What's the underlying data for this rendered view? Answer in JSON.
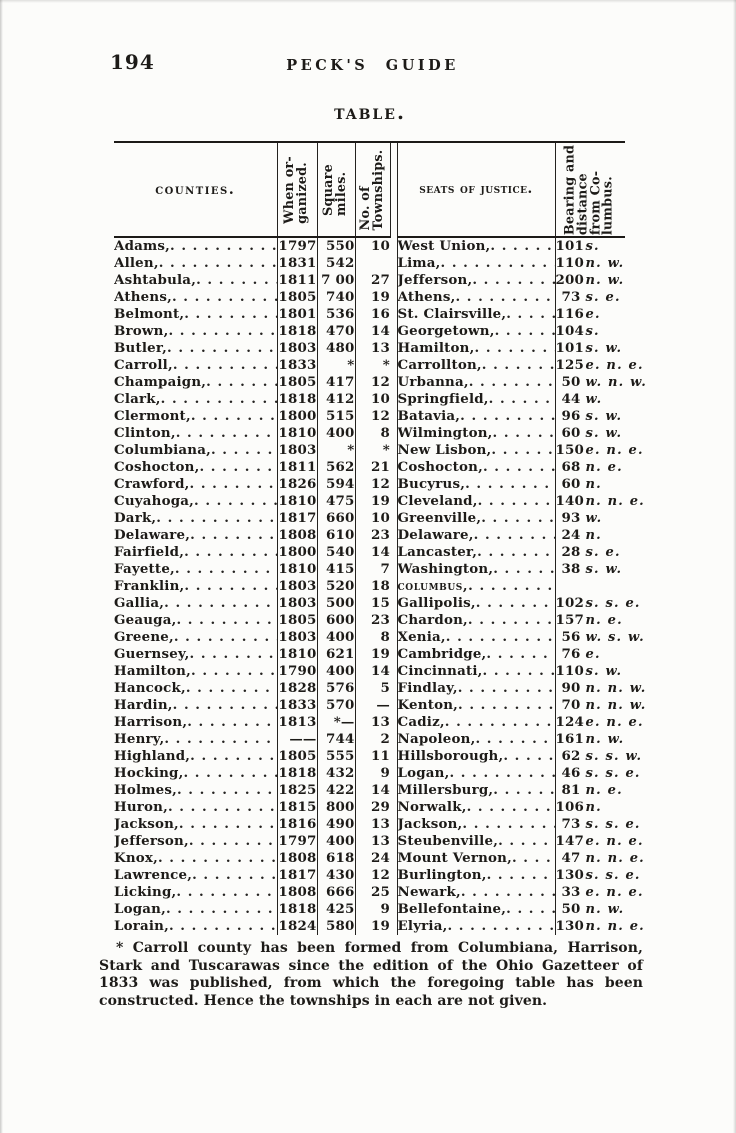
{
  "doc": {
    "page_number": "194",
    "running_head": "PECK'S GUIDE",
    "table_title": "Table."
  },
  "table": {
    "headers": {
      "counties": "Counties.",
      "organized": [
        "When or-",
        "ganized."
      ],
      "sq_miles": [
        "Square",
        "miles."
      ],
      "townships": [
        "No. of",
        "Townships."
      ],
      "seats": "Seats of Justice.",
      "bearing": [
        "Bearing and",
        "distance",
        "from Co-",
        "lumbus."
      ]
    },
    "rows": [
      {
        "county": "Adams,",
        "organized": "1797",
        "sq_miles": "550",
        "townships": "10",
        "seat": "West Union,",
        "dist": "101",
        "dir": "s."
      },
      {
        "county": "Allen,",
        "organized": "1831",
        "sq_miles": "542",
        "townships": "",
        "seat": "Lima,",
        "dist": "110",
        "dir": "n. w."
      },
      {
        "county": "Ashtabula,",
        "organized": "1811",
        "sq_miles": "7 00",
        "townships": "27",
        "seat": "Jefferson,",
        "dist": "200",
        "dir": "n. w."
      },
      {
        "county": "Athens,",
        "organized": "1805",
        "sq_miles": "740",
        "townships": "19",
        "seat": "Athens,",
        "dist": "73",
        "dir": "s. e."
      },
      {
        "county": "Belmont,",
        "organized": "1801",
        "sq_miles": "536",
        "townships": "16",
        "seat": "St. Clairsville,",
        "dist": "116",
        "dir": "e."
      },
      {
        "county": "Brown,",
        "organized": "1818",
        "sq_miles": "470",
        "townships": "14",
        "seat": "Georgetown,",
        "dist": "104",
        "dir": "s."
      },
      {
        "county": "Butler,",
        "organized": "1803",
        "sq_miles": "480",
        "townships": "13",
        "seat": "Hamilton,",
        "dist": "101",
        "dir": "s. w."
      },
      {
        "county": "Carroll,",
        "organized": "1833",
        "sq_miles": "*",
        "townships": "*",
        "seat": "Carrollton,",
        "dist": "125",
        "dir": "e. n. e."
      },
      {
        "county": "Champaign,",
        "organized": "1805",
        "sq_miles": "417",
        "townships": "12",
        "seat": "Urbanna,",
        "dist": "50",
        "dir": "w. n. w."
      },
      {
        "county": "Clark,",
        "organized": "1818",
        "sq_miles": "412",
        "townships": "10",
        "seat": "Springfield,",
        "dist": "44",
        "dir": "w."
      },
      {
        "county": "Clermont,",
        "organized": "1800",
        "sq_miles": "515",
        "townships": "12",
        "seat": "Batavia,",
        "dist": "96",
        "dir": "s. w."
      },
      {
        "county": "Clinton,",
        "organized": "1810",
        "sq_miles": "400",
        "townships": "8",
        "seat": "Wilmington,",
        "dist": "60",
        "dir": "s. w."
      },
      {
        "county": "Columbiana,",
        "organized": "1803",
        "sq_miles": "*",
        "townships": "*",
        "seat": "New Lisbon,",
        "dist": "150",
        "dir": "e. n. e."
      },
      {
        "county": "Coshocton,",
        "organized": "1811",
        "sq_miles": "562",
        "townships": "21",
        "seat": "Coshocton,",
        "dist": "68",
        "dir": "n. e."
      },
      {
        "county": "Crawford,",
        "organized": "1826",
        "sq_miles": "594",
        "townships": "12",
        "seat": "Bucyrus,",
        "dist": "60",
        "dir": "n."
      },
      {
        "county": "Cuyahoga,",
        "organized": "1810",
        "sq_miles": "475",
        "townships": "19",
        "seat": "Cleveland,",
        "dist": "140",
        "dir": "n. n. e."
      },
      {
        "county": "Dark,",
        "organized": "1817",
        "sq_miles": "660",
        "townships": "10",
        "seat": "Greenville,",
        "dist": "93",
        "dir": "w."
      },
      {
        "county": "Delaware,",
        "organized": "1808",
        "sq_miles": "610",
        "townships": "23",
        "seat": "Delaware,",
        "dist": "24",
        "dir": "n."
      },
      {
        "county": "Fairfield,",
        "organized": "1800",
        "sq_miles": "540",
        "townships": "14",
        "seat": "Lancaster,",
        "dist": "28",
        "dir": "s. e."
      },
      {
        "county": "Fayette,",
        "organized": "1810",
        "sq_miles": "415",
        "townships": "7",
        "seat": "Washington,",
        "dist": "38",
        "dir": "s. w."
      },
      {
        "county": "Franklin,",
        "organized": "1803",
        "sq_miles": "520",
        "townships": "18",
        "seat": "Columbus,",
        "seat_smallcaps": true,
        "dist": "",
        "dir": ""
      },
      {
        "county": "Gallia,",
        "organized": "1803",
        "sq_miles": "500",
        "townships": "15",
        "seat": "Gallipolis,",
        "dist": "102",
        "dir": "s. s. e."
      },
      {
        "county": "Geauga,",
        "organized": "1805",
        "sq_miles": "600",
        "townships": "23",
        "seat": "Chardon,",
        "dist": "157",
        "dir": "n. e."
      },
      {
        "county": "Greene,",
        "organized": "1803",
        "sq_miles": "400",
        "townships": "8",
        "seat": "Xenia,",
        "dist": "56",
        "dir": "w. s. w."
      },
      {
        "county": "Guernsey,",
        "organized": "1810",
        "sq_miles": "621",
        "townships": "19",
        "seat": "Cambridge,",
        "dist": "76",
        "dir": "e."
      },
      {
        "county": "Hamilton,",
        "organized": "1790",
        "sq_miles": "400",
        "townships": "14",
        "seat": "Cincinnati,",
        "dist": "110",
        "dir": "s. w."
      },
      {
        "county": "Hancock,",
        "organized": "1828",
        "sq_miles": "576",
        "townships": "5",
        "seat": "Findlay,",
        "dist": "90",
        "dir": "n. n. w."
      },
      {
        "county": "Hardin,",
        "organized": "1833",
        "sq_miles": "570",
        "townships": "—",
        "seat": "Kenton,",
        "dist": "70",
        "dir": "n. n. w."
      },
      {
        "county": "Harrison,",
        "organized": "1813",
        "sq_miles": "*—",
        "townships": "13",
        "seat": "Cadiz,",
        "dist": "124",
        "dir": "e. n. e."
      },
      {
        "county": "Henry,",
        "organized": "——",
        "sq_miles": "744",
        "townships": "2",
        "seat": "Napoleon,",
        "dist": "161",
        "dir": "n. w."
      },
      {
        "county": "Highland,",
        "organized": "1805",
        "sq_miles": "555",
        "townships": "11",
        "seat": "Hillsborough,",
        "dist": "62",
        "dir": "s. s. w."
      },
      {
        "county": "Hocking,",
        "organized": "1818",
        "sq_miles": "432",
        "townships": "9",
        "seat": "Logan,",
        "dist": "46",
        "dir": "s. s. e."
      },
      {
        "county": "Holmes,",
        "organized": "1825",
        "sq_miles": "422",
        "townships": "14",
        "seat": "Millersburg,",
        "dist": "81",
        "dir": "n. e."
      },
      {
        "county": "Huron,",
        "organized": "1815",
        "sq_miles": "800",
        "townships": "29",
        "seat": "Norwalk,",
        "dist": "106",
        "dir": "n."
      },
      {
        "county": "Jackson,",
        "organized": "1816",
        "sq_miles": "490",
        "townships": "13",
        "seat": "Jackson,",
        "dist": "73",
        "dir": "s. s. e."
      },
      {
        "county": "Jefferson,",
        "organized": "1797",
        "sq_miles": "400",
        "townships": "13",
        "seat": "Steubenville,",
        "dist": "147",
        "dir": "e. n. e."
      },
      {
        "county": "Knox,",
        "organized": "1808",
        "sq_miles": "618",
        "townships": "24",
        "seat": "Mount Vernon,",
        "dist": "47",
        "dir": "n. n. e."
      },
      {
        "county": "Lawrence,",
        "organized": "1817",
        "sq_miles": "430",
        "townships": "12",
        "seat": "Burlington,",
        "dist": "130",
        "dir": "s. s. e."
      },
      {
        "county": "Licking,",
        "organized": "1808",
        "sq_miles": "666",
        "townships": "25",
        "seat": "Newark,",
        "dist": "33",
        "dir": "e. n. e."
      },
      {
        "county": "Logan,",
        "organized": "1818",
        "sq_miles": "425",
        "townships": "9",
        "seat": "Bellefontaine,",
        "dist": "50",
        "dir": "n. w."
      },
      {
        "county": "Lorain,",
        "organized": "1824",
        "sq_miles": "580",
        "townships": "19",
        "seat": "Elyria,",
        "dist": "130",
        "dir": "n. n. e."
      }
    ]
  },
  "footnote": {
    "text": "* Carroll county has been formed from Columbiana, Harrison, Stark and Tuscarawas since the edition of the Ohio Gazetteer of 1833 was published, from which the foregoing table has been constructed. Hence the townships in each are not given."
  }
}
